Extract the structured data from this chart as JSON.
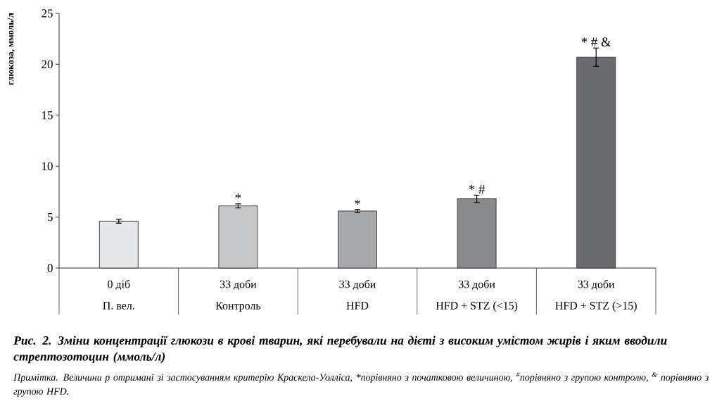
{
  "chart_data": {
    "type": "bar",
    "title": "Рис. 2. Зміни концентрації глюкози в крові тварин, які перебували на дієті з високим умістом жирів і яким вводили стрептозотоцин (ммоль/л)",
    "ylabel": "глюкоза, ммоль/л",
    "categories": [
      "П. вел.",
      "Контроль",
      "HFD",
      "HFD + STZ (<15)",
      "HFD + STZ (>15)"
    ],
    "values": [
      4.6,
      6.1,
      5.6,
      6.8,
      20.7
    ],
    "errors": [
      0.2,
      0.2,
      0.15,
      0.35,
      0.9
    ],
    "colors": [
      "#e5e6e8",
      "#c6c7c9",
      "#a7a8ab",
      "#898a8e",
      "#6b6c70"
    ],
    "ylim": [
      0,
      25
    ],
    "yticks": [
      0,
      5,
      10,
      15,
      20,
      25
    ],
    "annotations": [
      "0 діб",
      "33 доби",
      "33 доби",
      "33 доби",
      "33 доби",
      {
        "text": "*",
        "x": "Контроль",
        "y": 6.3
      },
      {
        "text": "*",
        "x": "HFD",
        "y": 5.7
      },
      {
        "text": "* #",
        "x": "HFD + STZ (<15)",
        "y": 7.15
      },
      {
        "text": "* # &",
        "x": "HFD + STZ (>15)",
        "y": 21.6
      },
      "Примітка. Величини p отримані зі застосуванням критерію Краскела-Уолліса, *порівняно з початковою величиною, $^{#}$порівняно з групою контролю, $^{&}$ порівняно з групою HFD."
    ]
  }
}
